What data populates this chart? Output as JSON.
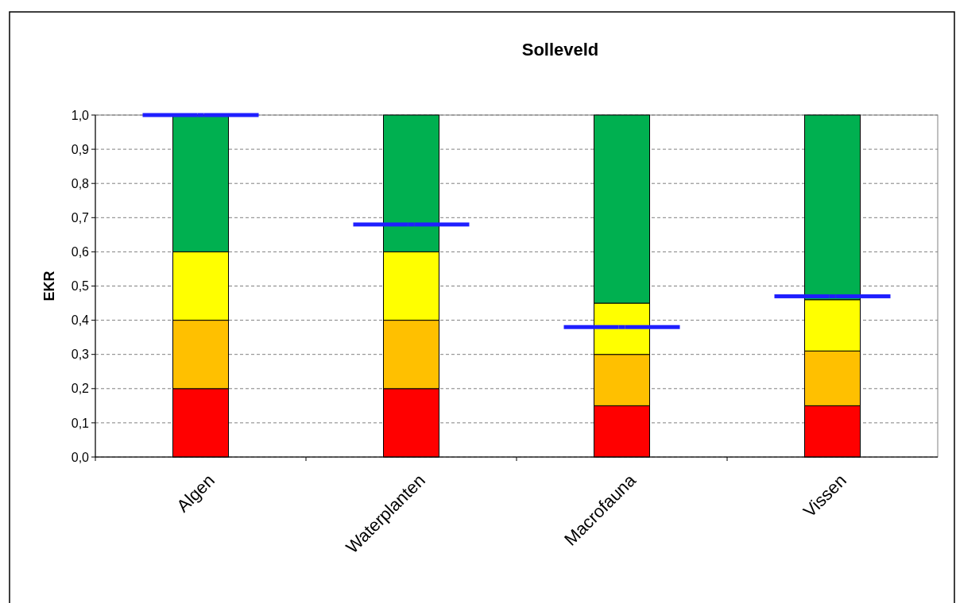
{
  "chart_data": {
    "type": "bar",
    "title": "Solleveld",
    "ylabel": "EKR",
    "stacked": true,
    "categories": [
      "Algen",
      "Waterplanten",
      "Macrofauna",
      "Vissen"
    ],
    "series": [
      {
        "color": "#ff0000",
        "values": [
          0.2,
          0.2,
          0.15,
          0.15
        ]
      },
      {
        "color": "#ffc000",
        "values": [
          0.2,
          0.2,
          0.15,
          0.16
        ]
      },
      {
        "color": "#ffff00",
        "values": [
          0.2,
          0.2,
          0.15,
          0.15
        ]
      },
      {
        "color": "#00b050",
        "values": [
          0.4,
          0.4,
          0.55,
          0.54
        ]
      },
      {
        "type": "scatter",
        "color": "#1f1fff",
        "x": [
          "Algen",
          "Waterplanten",
          "Macrofauna",
          "Vissen"
        ],
        "values": [
          1.0,
          0.68,
          0.38,
          0.47
        ]
      }
    ],
    "ylim": [
      0,
      1
    ],
    "yticks": [
      {
        "value": 0,
        "label": "0,0"
      },
      {
        "value": 0.1,
        "label": "0,1"
      },
      {
        "value": 0.2,
        "label": "0,2"
      },
      {
        "value": 0.3,
        "label": "0,3"
      },
      {
        "value": 0.4,
        "label": "0,4"
      },
      {
        "value": 0.5,
        "label": "0,5"
      },
      {
        "value": 0.6,
        "label": "0,6"
      },
      {
        "value": 0.7,
        "label": "0,7"
      },
      {
        "value": 0.8,
        "label": "0,8"
      },
      {
        "value": 0.9,
        "label": "0,9"
      },
      {
        "value": 1,
        "label": "1,0"
      }
    ],
    "grid": "y"
  }
}
